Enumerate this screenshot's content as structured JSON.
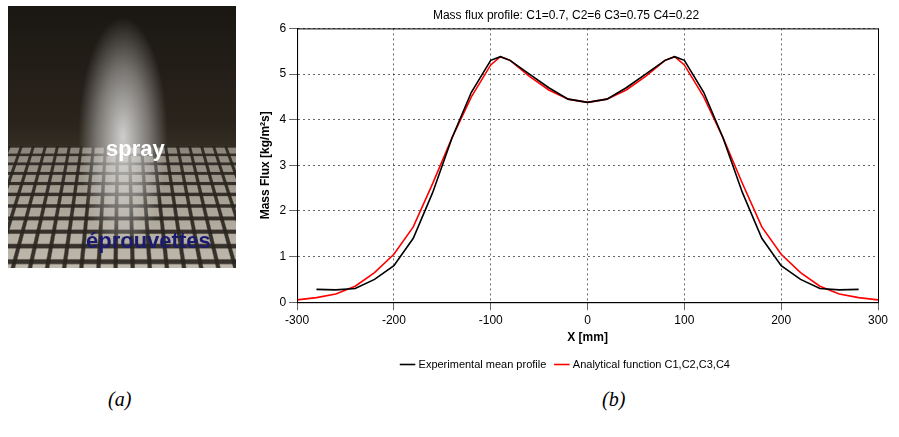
{
  "photo": {
    "labels": [
      "spray",
      "éprouvettes"
    ]
  },
  "captions": [
    "(a)",
    "(b)"
  ],
  "chart_data": {
    "type": "line",
    "title": "Mass flux profile: C1=0.7, C2=6 C3=0.75 C4=0.22",
    "x_label": "X [mm]",
    "y_label": "Mass Flux [kg/m²s]",
    "x": [
      -300,
      -280,
      -260,
      -240,
      -220,
      -200,
      -180,
      -160,
      -140,
      -120,
      -100,
      -90,
      -80,
      -60,
      -40,
      -20,
      0,
      20,
      40,
      60,
      80,
      90,
      100,
      120,
      140,
      160,
      180,
      200,
      220,
      240,
      260,
      280,
      300
    ],
    "series": [
      {
        "name": "Experimental mean profile",
        "color": "#000000",
        "values": [
          null,
          0.28,
          0.27,
          0.3,
          0.5,
          0.8,
          1.4,
          2.4,
          3.6,
          4.6,
          5.3,
          5.38,
          5.3,
          5.0,
          4.7,
          4.45,
          4.38,
          4.45,
          4.7,
          5.0,
          5.3,
          5.38,
          5.3,
          4.6,
          3.6,
          2.4,
          1.4,
          0.8,
          0.5,
          0.3,
          0.27,
          0.28,
          null
        ]
      },
      {
        "name": "Analytical function C1,C2,C3,C4",
        "color": "#ff0000",
        "values": [
          0.05,
          0.1,
          0.18,
          0.35,
          0.65,
          1.05,
          1.65,
          2.6,
          3.6,
          4.5,
          5.2,
          5.38,
          5.3,
          4.95,
          4.65,
          4.45,
          4.38,
          4.45,
          4.65,
          4.95,
          5.3,
          5.38,
          5.2,
          4.5,
          3.6,
          2.6,
          1.65,
          1.05,
          0.65,
          0.35,
          0.18,
          0.1,
          0.05
        ]
      }
    ],
    "xlim": [
      -300,
      300
    ],
    "xticks": [
      -300,
      -200,
      -100,
      0,
      100,
      200,
      300
    ],
    "ylim": [
      0,
      6
    ],
    "yticks": [
      0,
      1,
      2,
      3,
      4,
      5,
      6
    ],
    "grid": true,
    "legend": "bottom"
  }
}
